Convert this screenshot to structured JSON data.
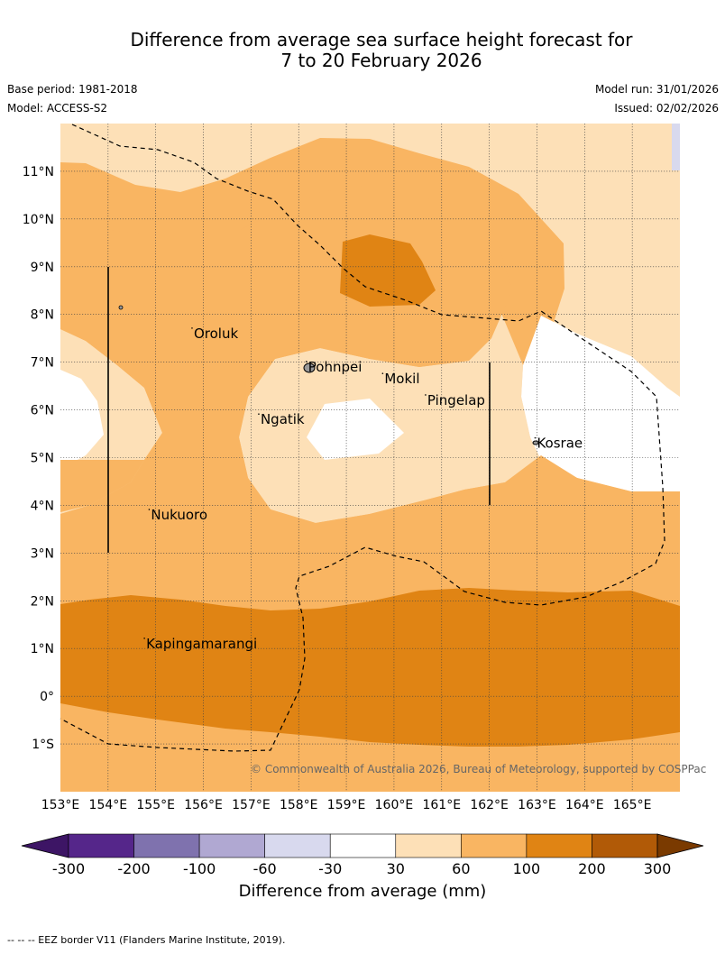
{
  "title": {
    "line1": "Difference from average sea surface height forecast for",
    "line2": "7 to 20 February 2026"
  },
  "meta": {
    "base_period": "Base period: 1981-2018",
    "model": "Model: ACCESS-S2",
    "model_run": "Model run: 31/01/2026",
    "issued": "Issued: 02/02/2026"
  },
  "map": {
    "longitudes": [
      "153°E",
      "154°E",
      "155°E",
      "156°E",
      "157°E",
      "158°E",
      "159°E",
      "160°E",
      "161°E",
      "162°E",
      "163°E",
      "164°E",
      "165°E"
    ],
    "latitudes": [
      "11°N",
      "10°N",
      "9°N",
      "8°N",
      "7°N",
      "6°N",
      "5°N",
      "4°N",
      "3°N",
      "2°N",
      "1°N",
      "0°",
      "1°S"
    ],
    "places": [
      {
        "name": "Oroluk",
        "lon": 155.8,
        "lat": 7.6
      },
      {
        "name": "Pohnpei",
        "lon": 158.2,
        "lat": 6.9
      },
      {
        "name": "Mokil",
        "lon": 159.8,
        "lat": 6.65
      },
      {
        "name": "Pingelap",
        "lon": 160.7,
        "lat": 6.2
      },
      {
        "name": "Ngatik",
        "lon": 157.2,
        "lat": 5.8
      },
      {
        "name": "Kosrae",
        "lon": 163.0,
        "lat": 5.3
      },
      {
        "name": "Nukuoro",
        "lon": 154.9,
        "lat": 3.8
      },
      {
        "name": "Kapingamarangi",
        "lon": 154.8,
        "lat": 1.1
      }
    ],
    "attribution": "© Commonwealth of Australia 2026, Bureau of Meteorology, supported by COSPPac"
  },
  "colorbar": {
    "ticks": [
      "-300",
      "-200",
      "-100",
      "-60",
      "-30",
      "30",
      "60",
      "100",
      "200",
      "300"
    ],
    "colors": [
      "#3d1565",
      "#55268a",
      "#7f72ae",
      "#b0a8d2",
      "#d8d9ee",
      "#ffffff",
      "#fde0b7",
      "#f9b562",
      "#e08414",
      "#b15a07",
      "#7a3a00"
    ],
    "label": "Difference from average (mm)"
  },
  "footer": {
    "eez_note": "--  --  -- EEZ border V11 (Flanders Marine Institute, 2019)."
  }
}
